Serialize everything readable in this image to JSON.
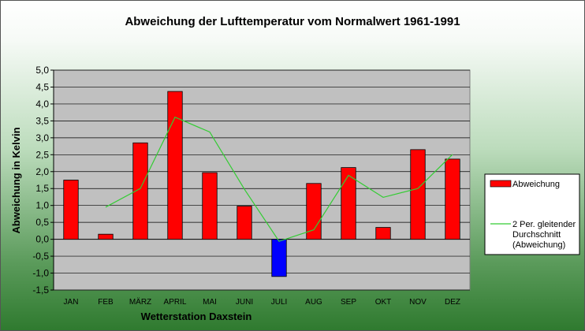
{
  "chart_data": {
    "type": "bar",
    "title": "Abweichung der Lufttemperatur vom Normalwert 1961-1991",
    "xlabel": "Wetterstation Daxstein",
    "ylabel": "Abweichung in Kelvin",
    "ylim": [
      -1.5,
      5.0
    ],
    "ytick_step": 0.5,
    "ytick_labels": [
      "-1,5",
      "-1,0",
      "-0,5",
      "0,0",
      "0,5",
      "1,0",
      "1,5",
      "2,0",
      "2,5",
      "3,0",
      "3,5",
      "4,0",
      "4,5",
      "5,0"
    ],
    "categories": [
      "JAN",
      "FEB",
      "MÄRZ",
      "APRIL",
      "MAI",
      "JUNI",
      "JULI",
      "AUG",
      "SEP",
      "OKT",
      "NOV",
      "DEZ"
    ],
    "series": [
      {
        "name": "Abweichung",
        "type": "bar",
        "values": [
          1.75,
          0.15,
          2.85,
          4.37,
          1.97,
          0.98,
          -1.1,
          1.65,
          2.12,
          0.35,
          2.65,
          2.37
        ],
        "color": "#ff0000",
        "negative_color": "#0000ff"
      },
      {
        "name_lines": [
          "2 Per. gleitender",
          "Durchschnitt",
          "(Abweichung)"
        ],
        "type": "line",
        "values": [
          null,
          0.95,
          1.5,
          3.61,
          3.17,
          1.48,
          -0.06,
          0.28,
          1.89,
          1.24,
          1.5,
          2.51
        ],
        "color": "#33cc33"
      }
    ],
    "plot_background": "#c0c0c0",
    "grid": true,
    "legend_position": "right"
  }
}
